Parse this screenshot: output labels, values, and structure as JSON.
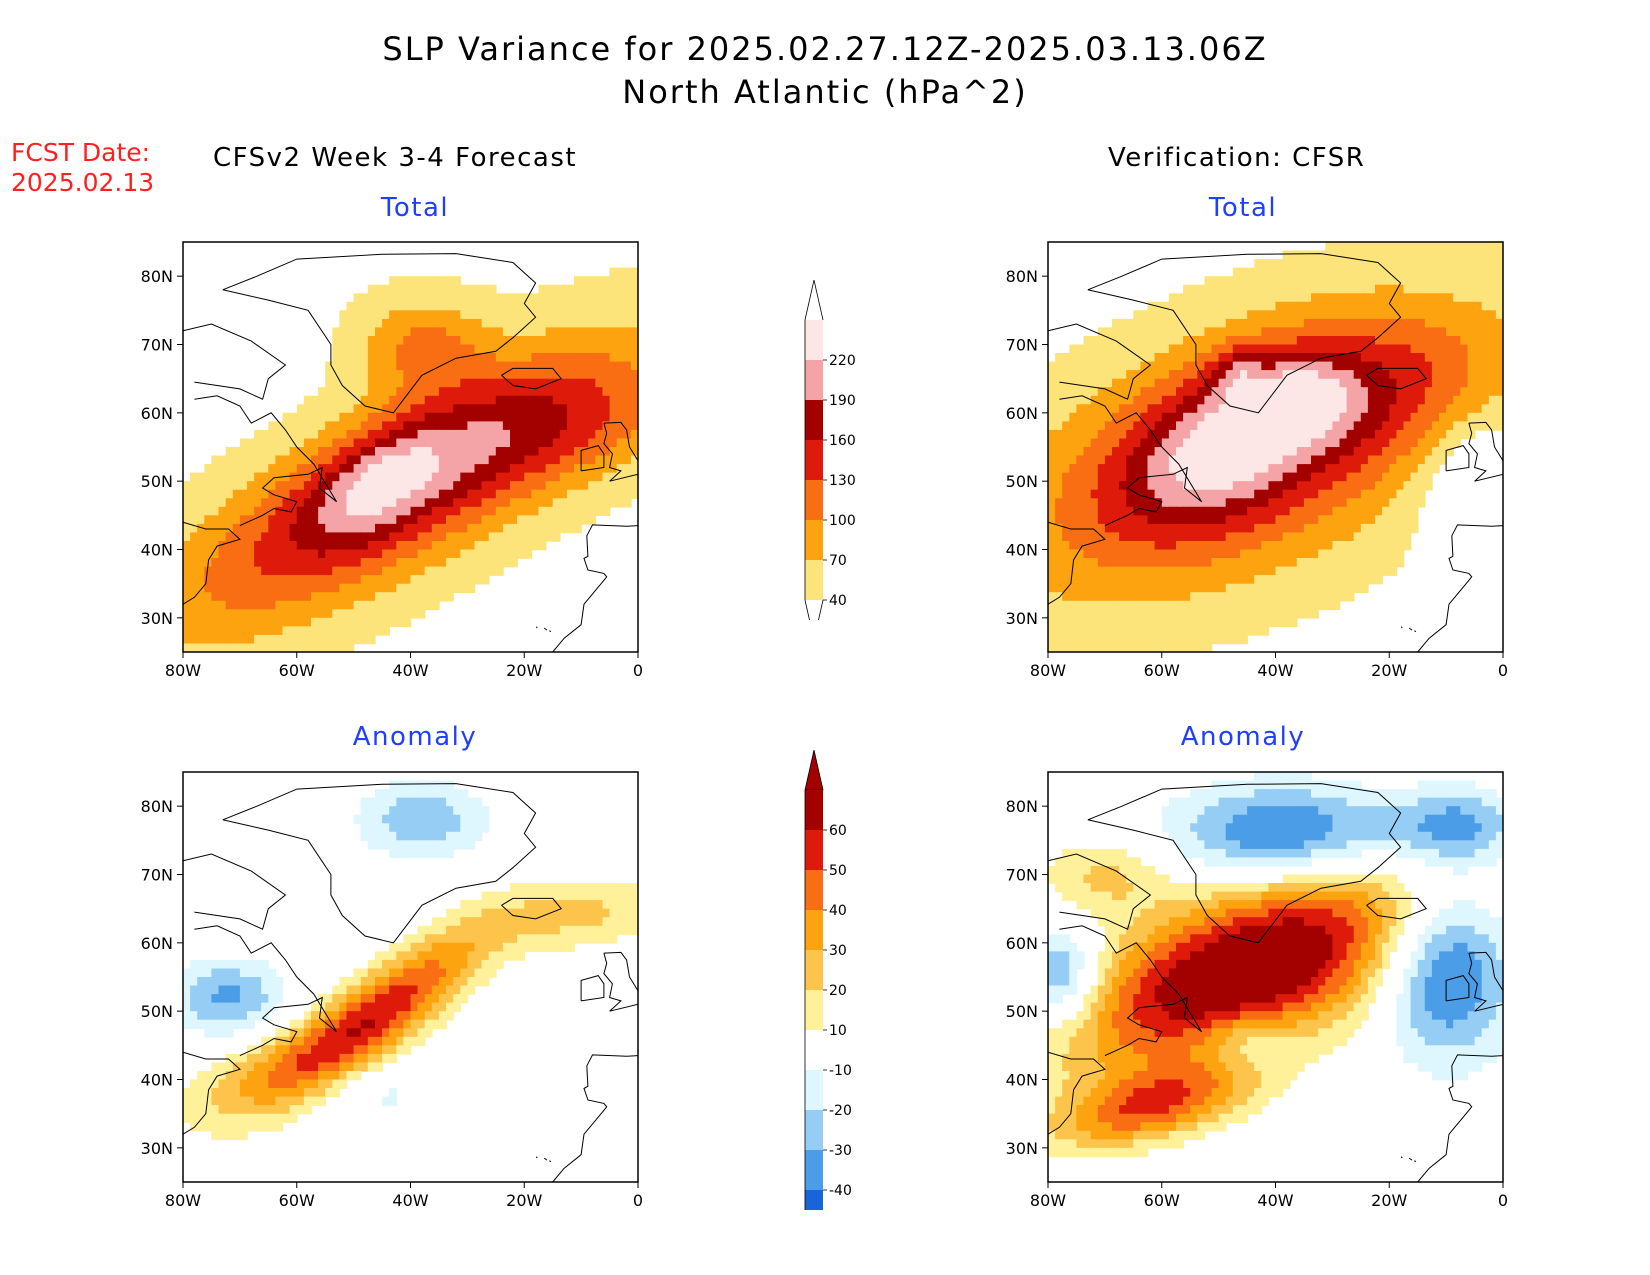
{
  "header": {
    "title_line1": "SLP Variance for 2025.02.27.12Z-2025.03.13.06Z",
    "title_line2": "North Atlantic (hPa^2)",
    "fcst_label": "FCST Date:",
    "fcst_date": "2025.02.13",
    "left_column": "CFSv2 Week 3-4 Forecast",
    "right_column": "Verification: CFSR"
  },
  "panels": {
    "top_left": {
      "title": "Total"
    },
    "top_right": {
      "title": "Total"
    },
    "bottom_left": {
      "title": "Anomaly"
    },
    "bottom_right": {
      "title": "Anomaly"
    }
  },
  "axes": {
    "lat_labels": [
      "80N",
      "70N",
      "60N",
      "50N",
      "40N",
      "30N"
    ],
    "lon_labels": [
      "80W",
      "60W",
      "40W",
      "20W",
      "0"
    ]
  },
  "colorbars": {
    "total": {
      "levels": [
        "220",
        "190",
        "160",
        "130",
        "100",
        "70",
        "40"
      ],
      "colors": [
        "#fde6e6",
        "#f4a3a6",
        "#a30000",
        "#de1a0a",
        "#f96e13",
        "#fda30f",
        "#fde47a"
      ]
    },
    "anomaly": {
      "levels": [
        "60",
        "50",
        "40",
        "30",
        "20",
        "10",
        "-10",
        "-20",
        "-30",
        "-40"
      ],
      "colors": [
        "#a30000",
        "#de1a0a",
        "#f96e13",
        "#fda30f",
        "#fcc44a",
        "#fff09a",
        "#ffffff",
        "#def7ff",
        "#95cdf5",
        "#4b9de7",
        "#1964d8"
      ]
    }
  }
}
